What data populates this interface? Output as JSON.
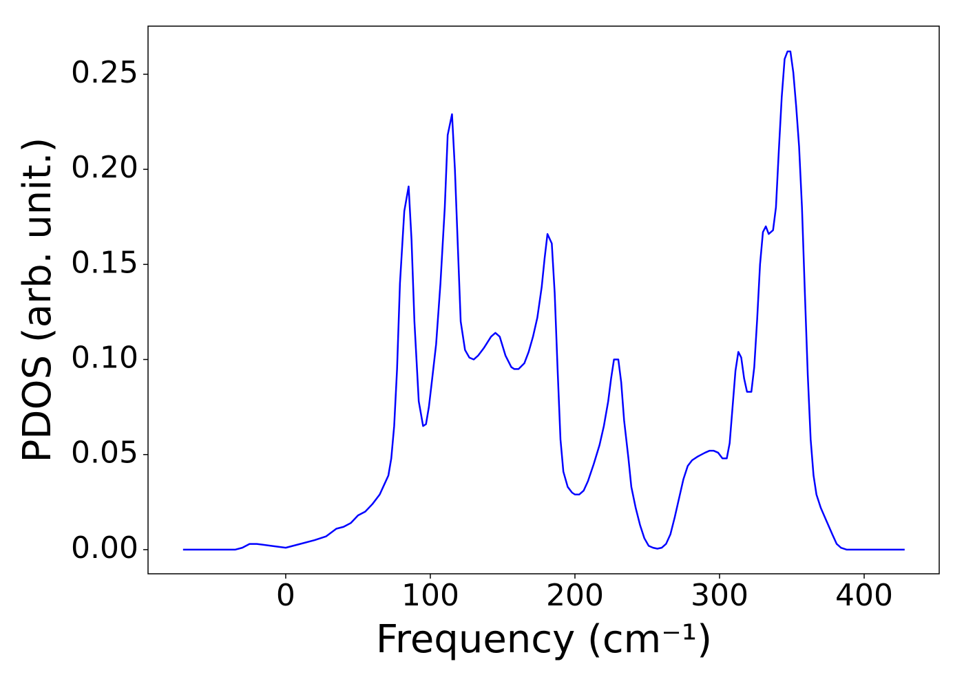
{
  "chart_data": {
    "type": "line",
    "xlabel": "Frequency (cm⁻¹)",
    "ylabel": "PDOS (arb. unit.)",
    "x": [
      -71,
      -35,
      -30,
      -25,
      -20,
      -10,
      0,
      10,
      20,
      28,
      35,
      40,
      45,
      50,
      55,
      60,
      65,
      68,
      71,
      73,
      75,
      77,
      79,
      82,
      85,
      87,
      89,
      92,
      95,
      97,
      99,
      101,
      104,
      107,
      110,
      112,
      115,
      117,
      119,
      121,
      124,
      127,
      130,
      133,
      137,
      142,
      145,
      148,
      152,
      156,
      158,
      161,
      165,
      168,
      171,
      174,
      177,
      179,
      181,
      184,
      186,
      188,
      190,
      192,
      195,
      198,
      200,
      203,
      206,
      209,
      213,
      217,
      220,
      223,
      225,
      227,
      230,
      232,
      234,
      237,
      239,
      242,
      245,
      248,
      251,
      254,
      257,
      260,
      263,
      266,
      269,
      272,
      275,
      278,
      281,
      285,
      290,
      293,
      296,
      299,
      302,
      305,
      307,
      309,
      311,
      313,
      315,
      317,
      319,
      322,
      324,
      326,
      328,
      330,
      332,
      334,
      337,
      339,
      341,
      343,
      345,
      347,
      349,
      351,
      353,
      355,
      357,
      359,
      361,
      363,
      365,
      367,
      370,
      374,
      378,
      381,
      384,
      388,
      395,
      428
    ],
    "series": [
      {
        "name": "PDOS",
        "color": "#0000ff",
        "values": [
          0,
          0,
          0.001,
          0.003,
          0.003,
          0.002,
          0.001,
          0.003,
          0.005,
          0.007,
          0.011,
          0.012,
          0.014,
          0.018,
          0.02,
          0.024,
          0.029,
          0.034,
          0.039,
          0.048,
          0.065,
          0.095,
          0.14,
          0.178,
          0.191,
          0.163,
          0.12,
          0.078,
          0.065,
          0.066,
          0.075,
          0.088,
          0.108,
          0.14,
          0.18,
          0.218,
          0.229,
          0.2,
          0.16,
          0.12,
          0.105,
          0.101,
          0.1,
          0.102,
          0.106,
          0.112,
          0.114,
          0.112,
          0.102,
          0.096,
          0.095,
          0.095,
          0.098,
          0.104,
          0.112,
          0.122,
          0.138,
          0.153,
          0.166,
          0.161,
          0.135,
          0.095,
          0.058,
          0.041,
          0.033,
          0.03,
          0.029,
          0.029,
          0.031,
          0.036,
          0.045,
          0.055,
          0.065,
          0.078,
          0.09,
          0.1,
          0.1,
          0.088,
          0.068,
          0.048,
          0.033,
          0.022,
          0.013,
          0.006,
          0.002,
          0.001,
          0.0005,
          0.001,
          0.003,
          0.008,
          0.017,
          0.027,
          0.037,
          0.044,
          0.047,
          0.049,
          0.051,
          0.052,
          0.052,
          0.051,
          0.048,
          0.048,
          0.056,
          0.075,
          0.094,
          0.104,
          0.101,
          0.09,
          0.083,
          0.083,
          0.096,
          0.121,
          0.15,
          0.167,
          0.17,
          0.166,
          0.168,
          0.18,
          0.21,
          0.238,
          0.258,
          0.262,
          0.262,
          0.251,
          0.233,
          0.212,
          0.18,
          0.135,
          0.092,
          0.058,
          0.039,
          0.029,
          0.022,
          0.015,
          0.008,
          0.003,
          0.001,
          0,
          0,
          0
        ]
      }
    ],
    "xlim": [
      -95.2,
      451.9
    ],
    "ylim": [
      -0.0127,
      0.2753
    ],
    "xticks": [
      0,
      100,
      200,
      300,
      400
    ],
    "yticks": [
      {
        "value": 0,
        "label": "0.00"
      },
      {
        "value": 0.05,
        "label": "0.05"
      },
      {
        "value": 0.1,
        "label": "0.10"
      },
      {
        "value": 0.15,
        "label": "0.15"
      },
      {
        "value": 0.2,
        "label": "0.20"
      },
      {
        "value": 0.25,
        "label": "0.25"
      }
    ]
  }
}
